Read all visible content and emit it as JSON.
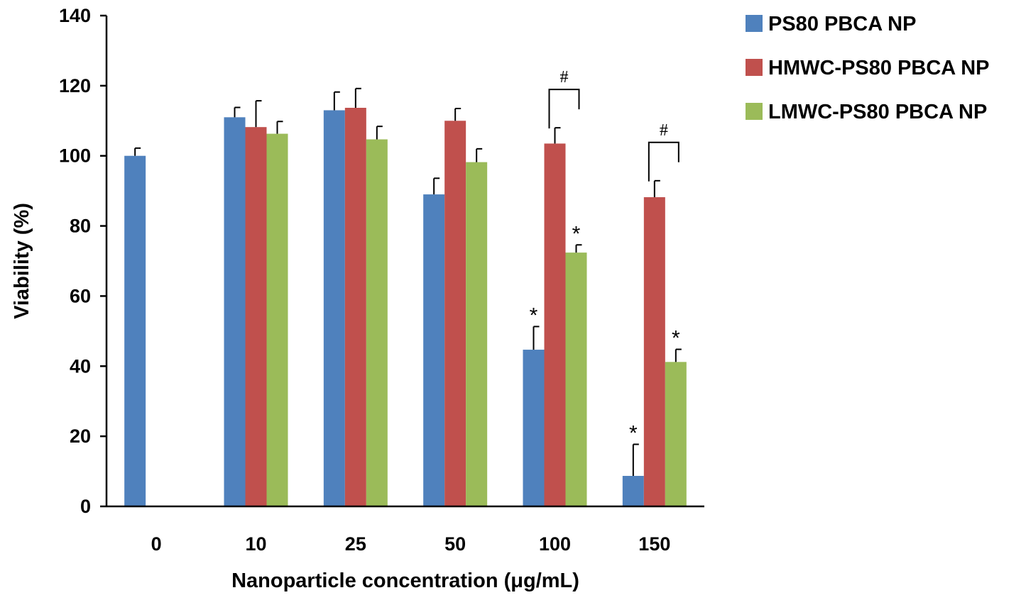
{
  "chart_data": {
    "type": "bar",
    "title": "",
    "xlabel": "Nanoparticle concentration (μg/mL)",
    "ylabel": "Viability (%)",
    "ylim": [
      0,
      140
    ],
    "yticks": [
      "0",
      "20",
      "40",
      "60",
      "80",
      "100",
      "120",
      "140"
    ],
    "categories": [
      "0",
      "10",
      "25",
      "50",
      "100",
      "150"
    ],
    "legend_position": "top-right",
    "series": [
      {
        "name": "PS80 PBCA NP",
        "color": "#4f81bd",
        "values": [
          100,
          111,
          113,
          89,
          44.7,
          8.7
        ],
        "errors": [
          2.2,
          2.8,
          5.2,
          4.6,
          6.6,
          9.0
        ],
        "annotations": [
          "",
          "",
          "",
          "",
          "*",
          "*"
        ]
      },
      {
        "name": "HMWC-PS80 PBCA NP",
        "color": "#c0504d",
        "values": [
          null,
          108.2,
          113.7,
          110,
          103.5,
          88.2
        ],
        "errors": [
          null,
          7.5,
          5.5,
          3.5,
          4.5,
          4.7
        ],
        "annotations": [
          "",
          "",
          "",
          "",
          "",
          ""
        ]
      },
      {
        "name": "LMWC-PS80 PBCA NP",
        "color": "#9bbb59",
        "values": [
          null,
          106.3,
          104.7,
          98.2,
          72.4,
          41.2
        ],
        "errors": [
          null,
          3.5,
          3.7,
          3.8,
          2.2,
          3.6
        ],
        "annotations": [
          "",
          "",
          "",
          "",
          "*",
          "*"
        ]
      }
    ],
    "brackets": [
      {
        "category": "100",
        "from_series": 1,
        "to_series": 2,
        "label": "#"
      },
      {
        "category": "150",
        "from_series": 1,
        "to_series": 2,
        "label": "#"
      }
    ]
  }
}
